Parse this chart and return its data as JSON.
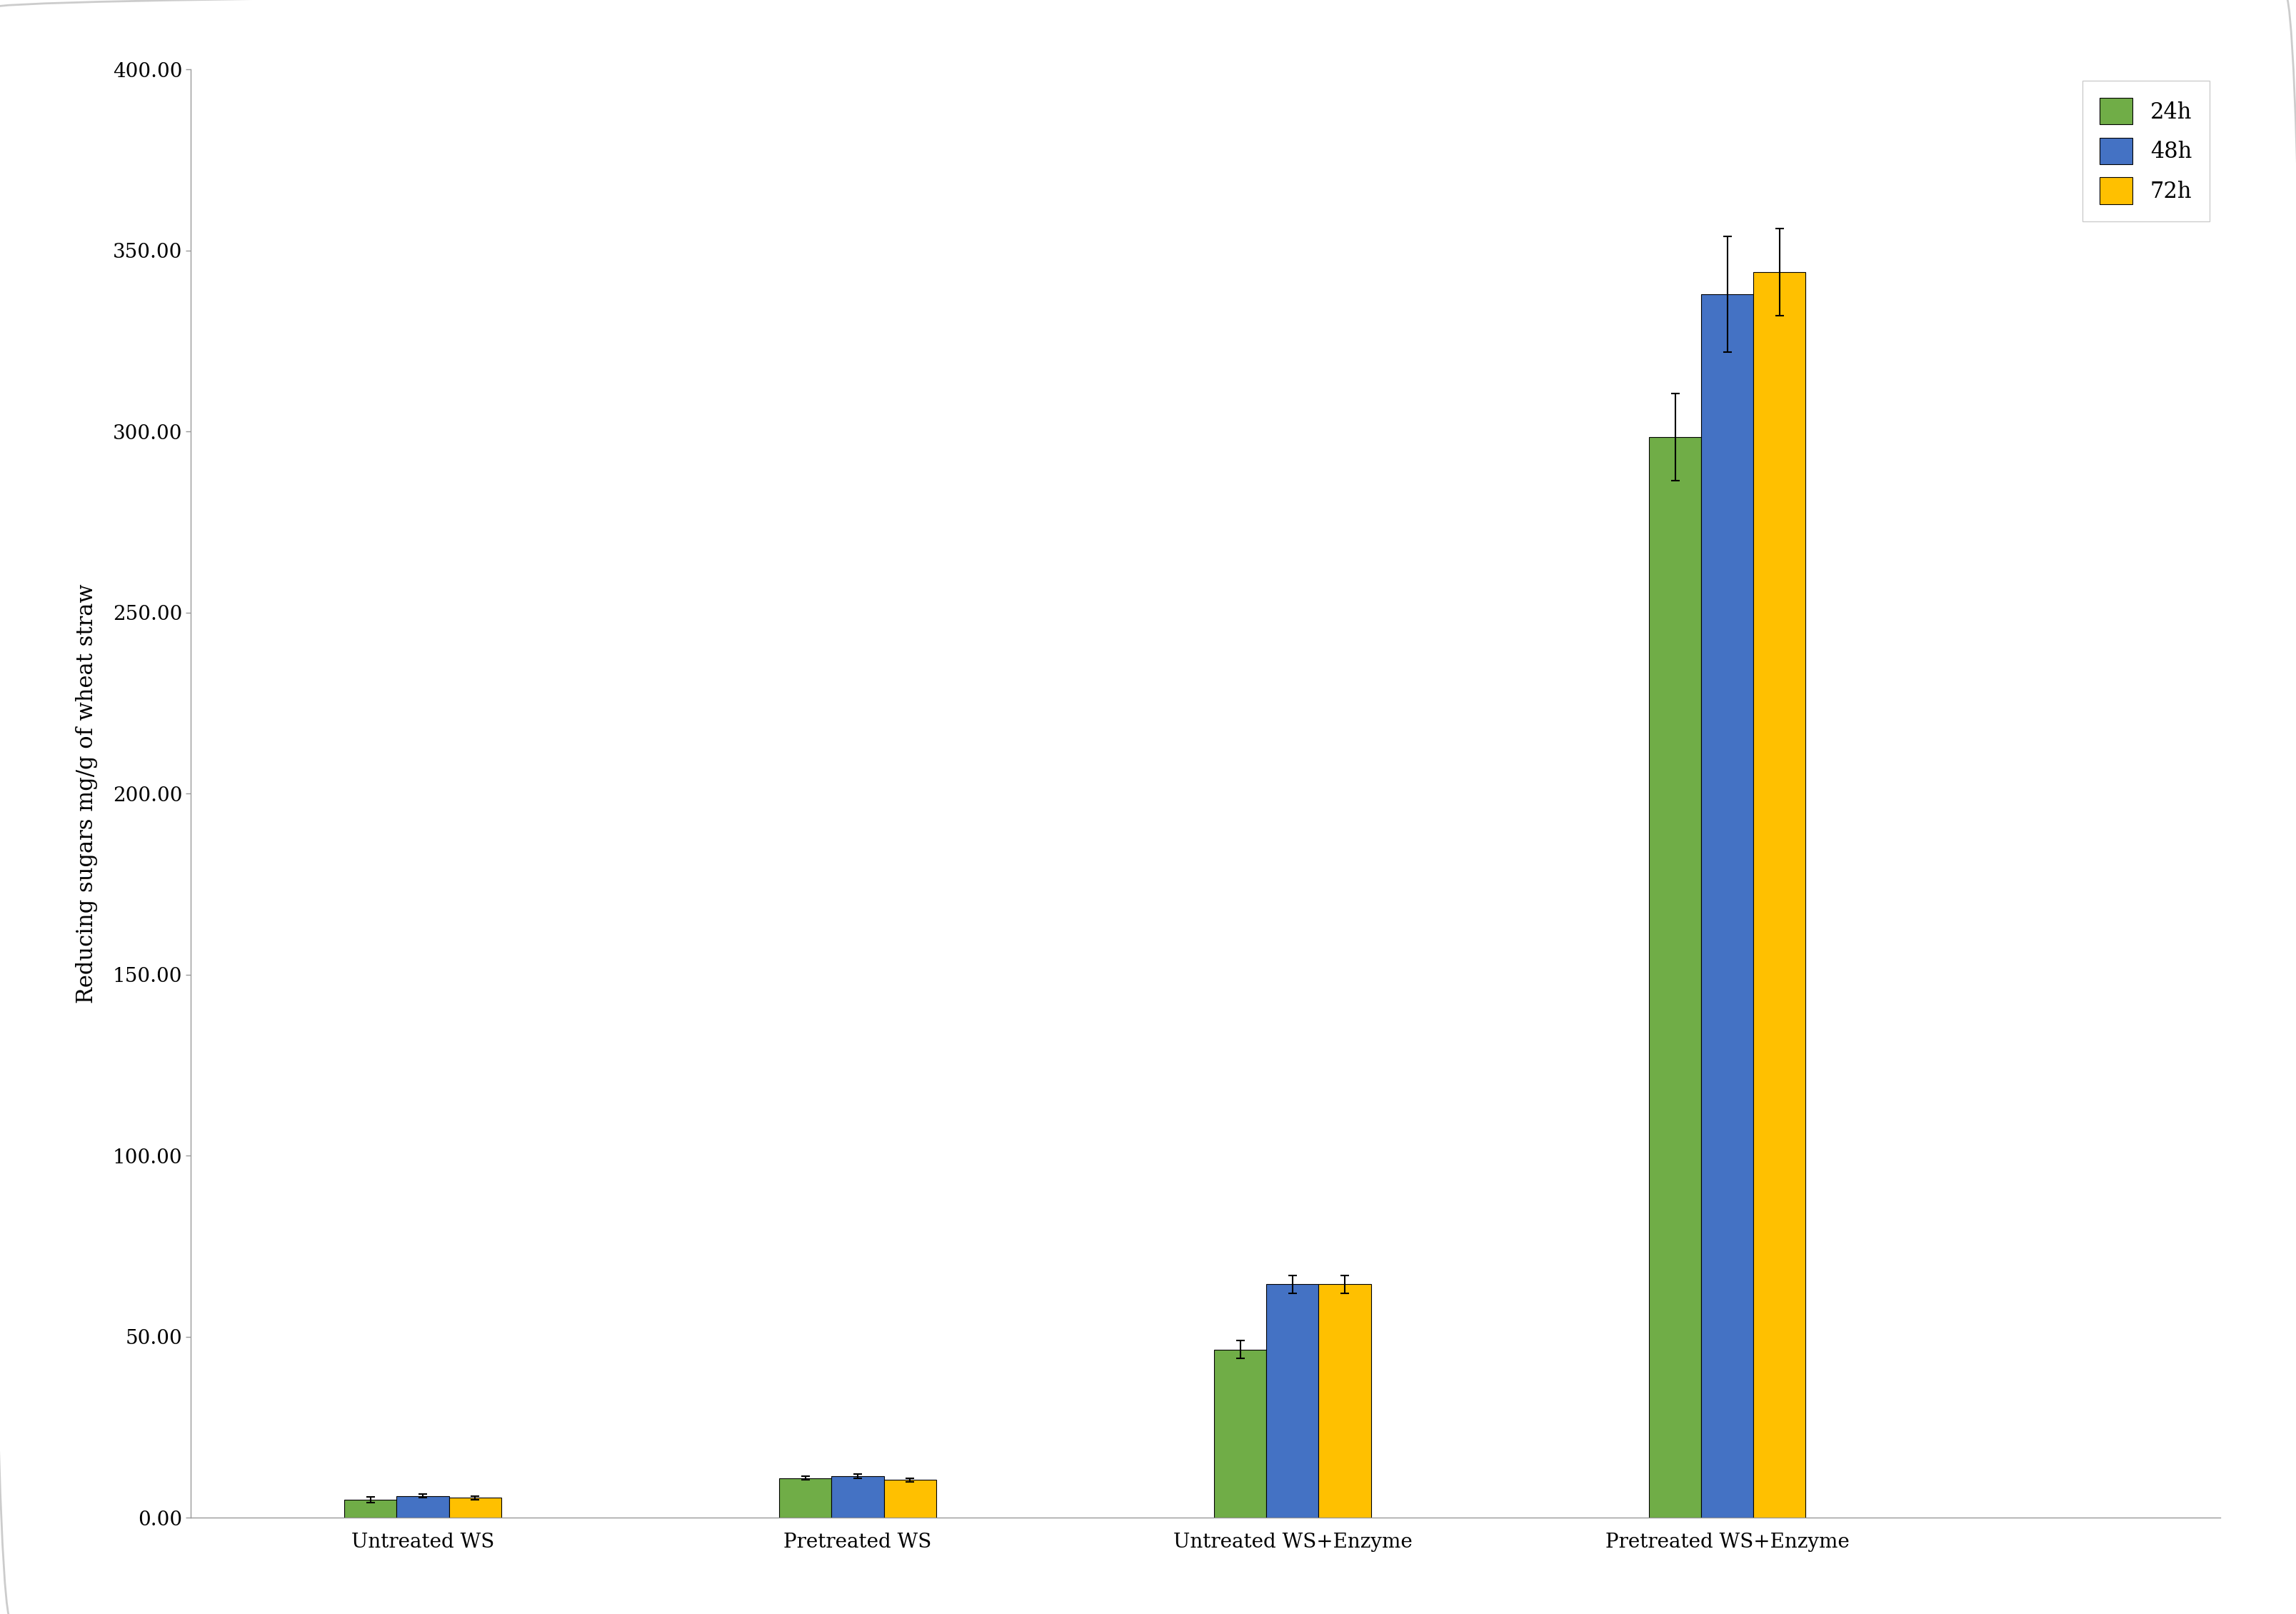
{
  "categories": [
    "Untreated WS",
    "Pretreated WS",
    "Untreated WS+Enzyme",
    "Pretreated WS+Enzyme"
  ],
  "series": {
    "24h": [
      5.0,
      11.0,
      46.5,
      298.5
    ],
    "48h": [
      6.0,
      11.5,
      64.5,
      338.0
    ],
    "72h": [
      5.5,
      10.5,
      64.5,
      344.0
    ]
  },
  "errors": {
    "24h": [
      0.8,
      0.5,
      2.5,
      12.0
    ],
    "48h": [
      0.5,
      0.5,
      2.5,
      16.0
    ],
    "72h": [
      0.5,
      0.5,
      2.5,
      12.0
    ]
  },
  "colors": {
    "24h": "#70AD47",
    "48h": "#4472C4",
    "72h": "#FFC000"
  },
  "ylabel": "Reducing sugars mg/g of wheat straw",
  "ylim": [
    0,
    400
  ],
  "yticks": [
    0.0,
    50.0,
    100.0,
    150.0,
    200.0,
    250.0,
    300.0,
    350.0,
    400.0
  ],
  "ytick_labels": [
    "0.00",
    "50.00",
    "100.00",
    "150.00",
    "200.00",
    "250.00",
    "300.00",
    "350.00",
    "400.00"
  ],
  "background_color": "#ffffff",
  "bar_width": 0.18,
  "edgecolor": "#000000",
  "legend_labels": [
    "24h",
    "48h",
    "72h"
  ],
  "axis_fontsize": 22,
  "tick_fontsize": 20,
  "legend_fontsize": 22,
  "group_positions": [
    1.0,
    2.5,
    4.0,
    5.5
  ],
  "xlim": [
    0.2,
    7.2
  ]
}
